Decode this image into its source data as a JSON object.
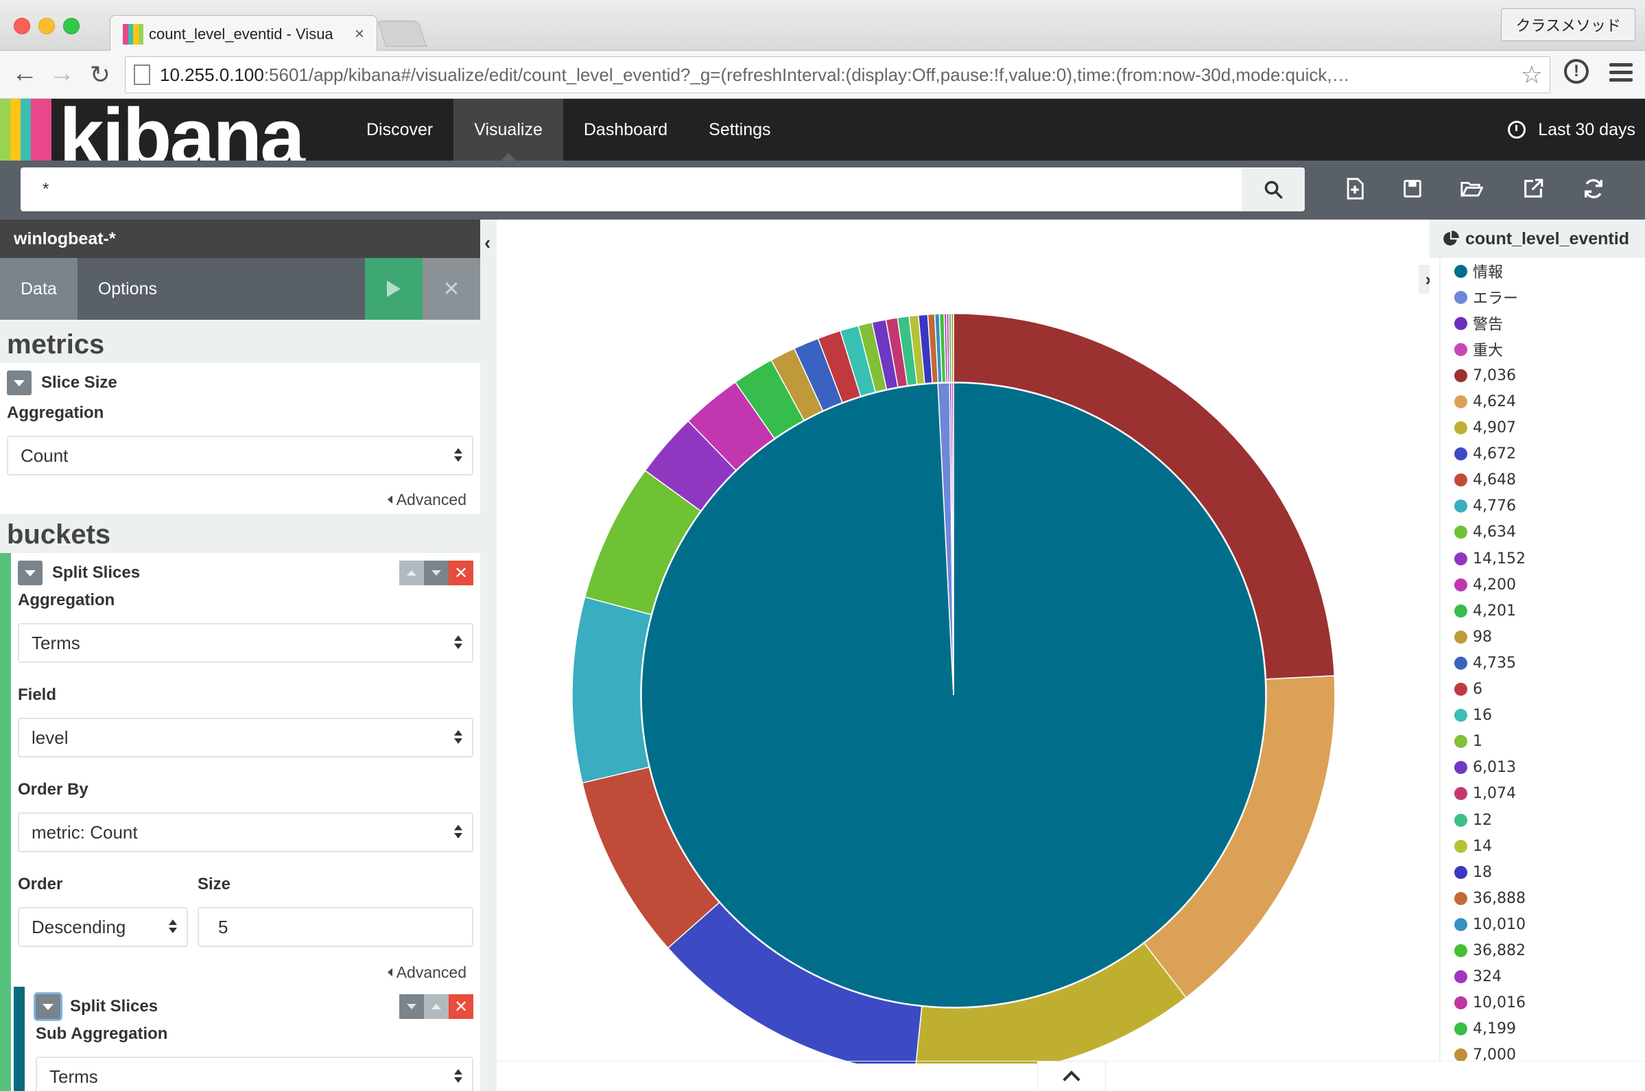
{
  "browser": {
    "tab_title": "count_level_eventid - Visua",
    "profile_label": "クラスメソッド",
    "url_host": "10.255.0.100",
    "url_rest": ":5601/app/kibana#/visualize/edit/count_level_eventid?_g=(refreshInterval:(display:Off,pause:!f,value:0),time:(from:now-30d,mode:quick,…"
  },
  "kibana": {
    "logo_text": "kibana",
    "nav": [
      "Discover",
      "Visualize",
      "Dashboard",
      "Settings"
    ],
    "time_range": "Last 30 days",
    "search_query": "*"
  },
  "sidebar": {
    "index_pattern": "winlogbeat-*",
    "tabs": [
      "Data",
      "Options"
    ],
    "metrics_heading": "metrics",
    "metric_title": "Slice Size",
    "aggregation_label": "Aggregation",
    "metric_aggregation": "Count",
    "advanced_label": "Advanced",
    "buckets_heading": "buckets",
    "bucket1": {
      "title": "Split Slices",
      "aggregation_label": "Aggregation",
      "aggregation": "Terms",
      "field_label": "Field",
      "field": "level",
      "order_by_label": "Order By",
      "order_by": "metric: Count",
      "order_label": "Order",
      "order": "Descending",
      "size_label": "Size",
      "size": "5",
      "advanced_label": "Advanced"
    },
    "bucket2": {
      "title": "Split Slices",
      "aggregation_label": "Sub Aggregation",
      "aggregation": "Terms"
    }
  },
  "legend": {
    "title": "count_level_eventid",
    "items": [
      {
        "label": "情報",
        "color": "#006e8a"
      },
      {
        "label": "エラー",
        "color": "#6f87d8"
      },
      {
        "label": "警告",
        "color": "#6f2dbf"
      },
      {
        "label": "重大",
        "color": "#c747b5"
      },
      {
        "label": "7,036",
        "color": "#9c3131"
      },
      {
        "label": "4,624",
        "color": "#dba157"
      },
      {
        "label": "4,907",
        "color": "#bfaf31"
      },
      {
        "label": "4,672",
        "color": "#3c4bc4"
      },
      {
        "label": "4,648",
        "color": "#c04b39"
      },
      {
        "label": "4,776",
        "color": "#3aadc0"
      },
      {
        "label": "4,634",
        "color": "#6ec234"
      },
      {
        "label": "14,152",
        "color": "#9037c2"
      },
      {
        "label": "4,200",
        "color": "#c236b0"
      },
      {
        "label": "4,201",
        "color": "#36bd4c"
      },
      {
        "label": "98",
        "color": "#c0993a"
      },
      {
        "label": "4,735",
        "color": "#3a62c0"
      },
      {
        "label": "6",
        "color": "#c0393f"
      },
      {
        "label": "16",
        "color": "#39c0b1"
      },
      {
        "label": "1",
        "color": "#82c036"
      },
      {
        "label": "6,013",
        "color": "#6f38c2"
      },
      {
        "label": "1,074",
        "color": "#c2386e"
      },
      {
        "label": "12",
        "color": "#38c285"
      },
      {
        "label": "14",
        "color": "#b5c238"
      },
      {
        "label": "18",
        "color": "#3a37c0"
      },
      {
        "label": "36,888",
        "color": "#c06a37"
      },
      {
        "label": "10,010",
        "color": "#3790c0"
      },
      {
        "label": "36,882",
        "color": "#45c038"
      },
      {
        "label": "324",
        "color": "#9f37c0"
      },
      {
        "label": "10,016",
        "color": "#c0379f"
      },
      {
        "label": "4,199",
        "color": "#37c045"
      },
      {
        "label": "7,000",
        "color": "#c08f37"
      }
    ]
  },
  "chart_data": {
    "type": "pie",
    "inner_ring": {
      "labels": [
        "情報",
        "エラー",
        "警告",
        "重大"
      ],
      "values": [
        99.2,
        0.6,
        0.1,
        0.1
      ]
    },
    "outer_ring": {
      "labels": [
        "7,036",
        "4,624",
        "4,907",
        "4,672",
        "4,648",
        "4,776",
        "4,634",
        "14,152",
        "4,200",
        "4,201",
        "98",
        "4,735",
        "6",
        "16",
        "1",
        "6,013",
        "1,074",
        "12",
        "14",
        "18",
        "36,888",
        "10,010",
        "36,882",
        "324",
        "10,016",
        "4,199",
        "7,000"
      ],
      "values": [
        24.7,
        15.7,
        12.3,
        12.1,
        8.0,
        8.0,
        6.0,
        2.8,
        2.6,
        1.8,
        1.1,
        1.1,
        1.0,
        0.8,
        0.6,
        0.6,
        0.5,
        0.5,
        0.4,
        0.4,
        0.3,
        0.2,
        0.2,
        0.1,
        0.1,
        0.1,
        0.1
      ]
    }
  }
}
